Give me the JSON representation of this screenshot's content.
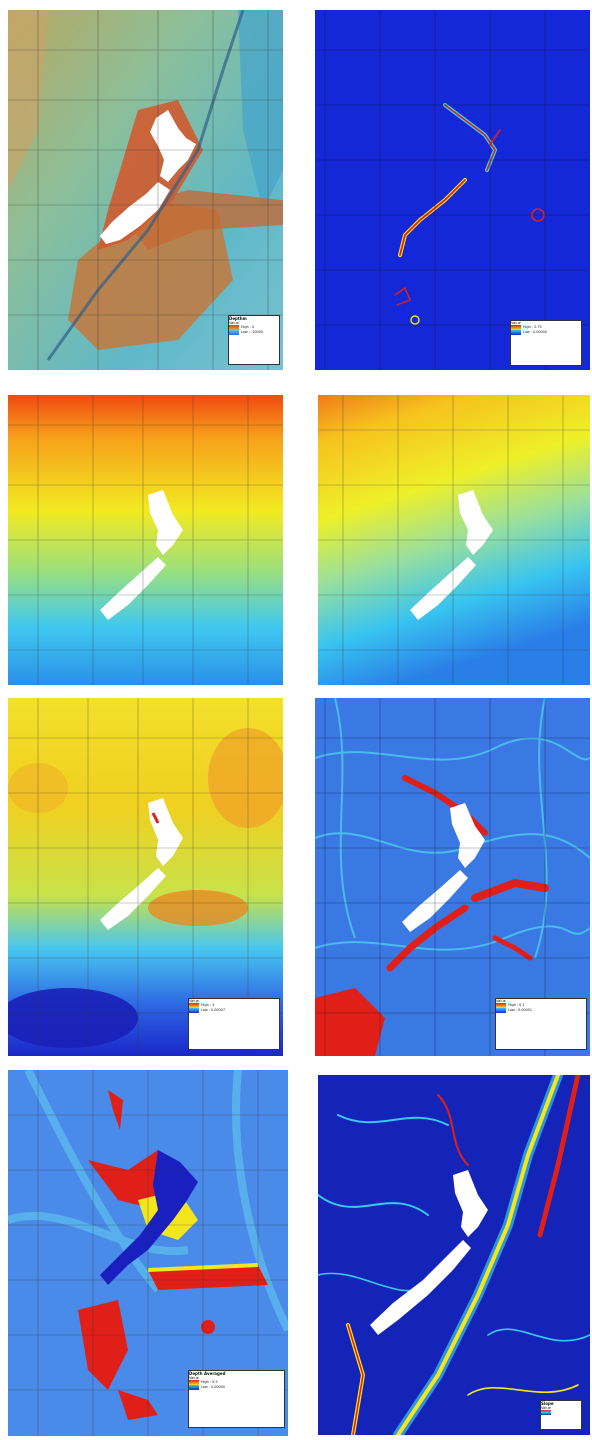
{
  "panels": [
    {
      "id": "p1",
      "legend": {
        "title": "Depthm",
        "value_label": "Value",
        "high": "High : 0",
        "low": "Low : -10000"
      }
    },
    {
      "id": "p2",
      "legend": {
        "title": "",
        "value_label": "Value",
        "high": "High : 2.75",
        "low": "Low : 0.00000"
      }
    },
    {
      "id": "p3",
      "legend": null
    },
    {
      "id": "p4",
      "legend": null
    },
    {
      "id": "p5",
      "legend": {
        "title": "",
        "value_label": "Value",
        "high": "High : 3",
        "low": "Low : 0.00007"
      }
    },
    {
      "id": "p6",
      "legend": {
        "title": "",
        "value_label": "Value",
        "high": "High : 0.1",
        "low": "Low : 0.00001"
      }
    },
    {
      "id": "p7",
      "legend": {
        "title": "Depth Averaged",
        "value_label": "Value",
        "high": "High : 0.5",
        "low": "Low : 0.00000"
      }
    },
    {
      "id": "p8",
      "legend": {
        "title": "Slope",
        "value_label": "Value",
        "high": "",
        "low": ""
      }
    }
  ],
  "colors": {
    "land": "#ffffff",
    "deep_blue": "#1a28d6",
    "red": "#e0201a",
    "yellow": "#f4e61c",
    "cyan": "#38c8f0"
  }
}
